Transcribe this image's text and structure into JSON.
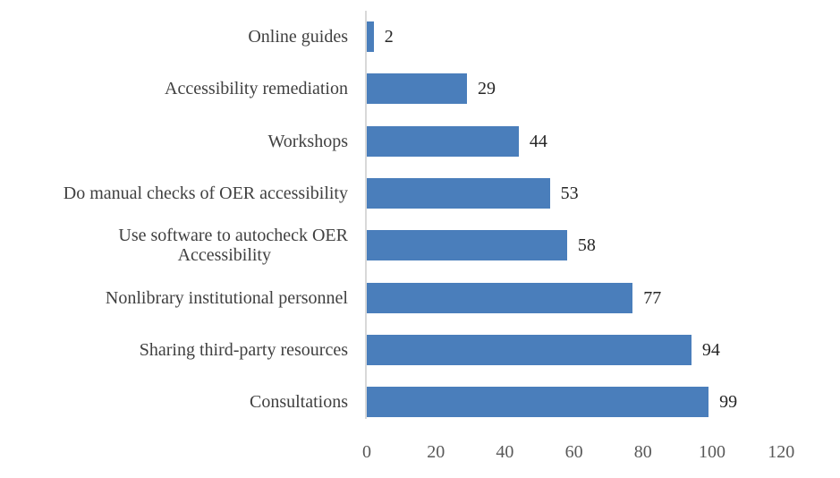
{
  "chart_data": {
    "type": "bar",
    "orientation": "horizontal",
    "title": "",
    "xlabel": "",
    "ylabel": "",
    "categories": [
      "Online guides",
      "Accessibility remediation",
      "Workshops",
      "Do manual checks of OER accessibility",
      "Use software to autocheck OER Accessibility",
      "Nonlibrary institutional personnel",
      "Sharing third-party resources",
      "Consultations"
    ],
    "category_lines": [
      [
        "Online guides"
      ],
      [
        "Accessibility remediation"
      ],
      [
        "Workshops"
      ],
      [
        "Do manual checks of OER accessibility"
      ],
      [
        "Use software to autocheck OER",
        "Accessibility"
      ],
      [
        "Nonlibrary institutional personnel"
      ],
      [
        "Sharing third-party resources"
      ],
      [
        "Consultations"
      ]
    ],
    "values": [
      2,
      29,
      44,
      53,
      58,
      77,
      94,
      99
    ],
    "xlim": [
      0,
      120
    ],
    "xticks": [
      "0",
      "20",
      "40",
      "60",
      "80",
      "100",
      "120"
    ],
    "grid": false,
    "legend": null,
    "data_labels": true,
    "bar_color": "#4a7ebb"
  }
}
